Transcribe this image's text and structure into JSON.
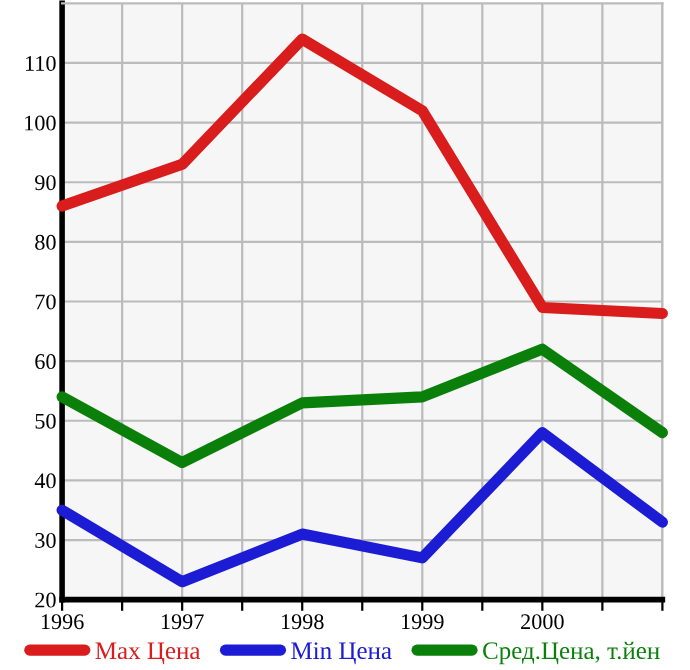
{
  "chart_data": {
    "type": "line",
    "x": [
      1996,
      1997,
      1998,
      1999,
      2000,
      2001
    ],
    "series": [
      {
        "name": "Max Цена",
        "color": "#d91c1c",
        "values": [
          86,
          93,
          114,
          102,
          69,
          68
        ]
      },
      {
        "name": "Min Цена",
        "color": "#1c1cd4",
        "values": [
          35,
          23,
          31,
          27,
          48,
          33
        ]
      },
      {
        "name": "Сред.Цена, т.йен",
        "color": "#0a800a",
        "values": [
          54,
          43,
          53,
          54,
          62,
          48
        ]
      }
    ],
    "xlim": [
      1996,
      2001
    ],
    "ylim": [
      20,
      120
    ],
    "xticks": [
      1996,
      {
        "value": 1996.5,
        "label": null
      },
      1997,
      {
        "value": 1997.5,
        "label": null
      },
      1998,
      {
        "value": 1998.5,
        "label": null
      },
      1999,
      {
        "value": 1999.5,
        "label": null
      },
      2000,
      {
        "value": 2000.5,
        "label": null
      },
      {
        "value": 2001,
        "label": null
      }
    ],
    "yticks": [
      20,
      30,
      40,
      50,
      60,
      70,
      80,
      90,
      100,
      110
    ],
    "grid": true,
    "legend": "bottom",
    "marker": "none",
    "line_style": "solid"
  }
}
